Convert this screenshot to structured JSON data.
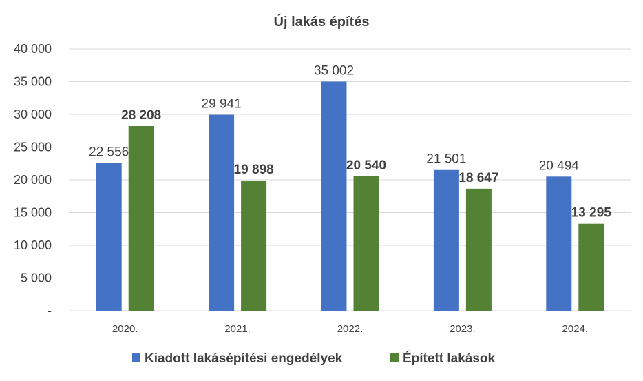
{
  "chart_data": {
    "type": "bar",
    "title": "Új lakás építés",
    "categories": [
      "2020.",
      "2021.",
      "2022.",
      "2023.",
      "2024."
    ],
    "series": [
      {
        "name": "Kiadott lakásépítési engedélyek",
        "values": [
          22556,
          29941,
          35002,
          21501,
          20494
        ],
        "color": "#4472c4",
        "label_bold": false
      },
      {
        "name": "Épített lakások",
        "values": [
          28208,
          19898,
          20540,
          18647,
          13295
        ],
        "color": "#548235",
        "label_bold": true
      }
    ],
    "data_labels": [
      [
        "22 556",
        "29 941",
        "35 002",
        "21 501",
        "20 494"
      ],
      [
        "28 208",
        "19 898",
        "20 540",
        "18 647",
        "13 295"
      ]
    ],
    "y_ticks": [
      {
        "value": 0,
        "label": "-"
      },
      {
        "value": 5000,
        "label": "5 000"
      },
      {
        "value": 10000,
        "label": "10 000"
      },
      {
        "value": 15000,
        "label": "15 000"
      },
      {
        "value": 20000,
        "label": "20 000"
      },
      {
        "value": 25000,
        "label": "25 000"
      },
      {
        "value": 30000,
        "label": "30 000"
      },
      {
        "value": 35000,
        "label": "35 000"
      },
      {
        "value": 40000,
        "label": "40 000"
      }
    ],
    "ylim": [
      0,
      40000
    ],
    "grid": true,
    "legend_position": "bottom"
  }
}
